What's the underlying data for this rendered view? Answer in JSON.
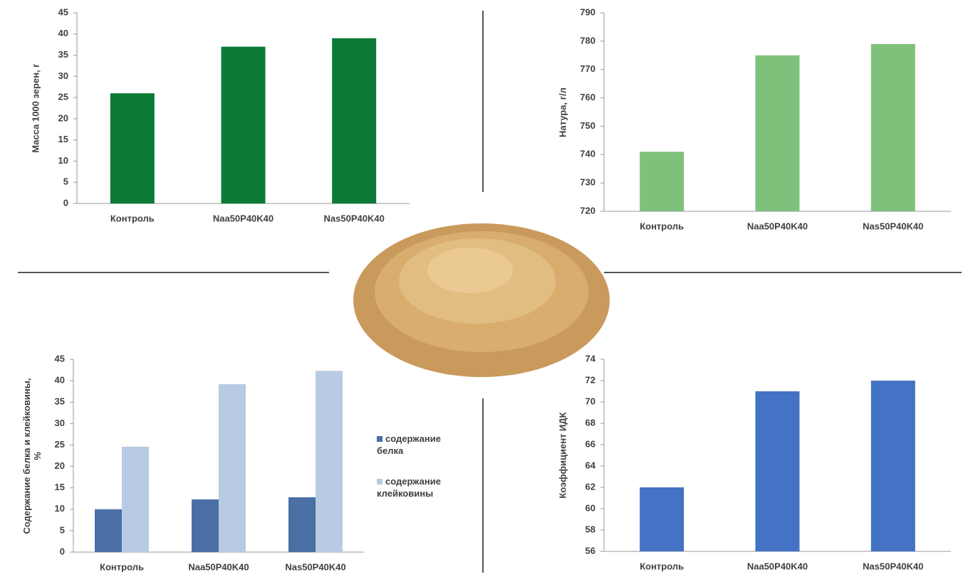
{
  "chart_data": [
    {
      "type": "bar",
      "y_label": "Масса 1000 зерен, г",
      "categories": [
        "Контроль",
        "Naa50P40K40",
        "Nas50P40K40"
      ],
      "values": [
        26,
        37,
        39
      ],
      "color": "#0b7a36",
      "ylim": [
        0,
        45
      ],
      "yticks": [
        0,
        5,
        10,
        15,
        20,
        25,
        30,
        35,
        40,
        45
      ]
    },
    {
      "type": "bar",
      "y_label": "Натура, г/л",
      "categories": [
        "Контроль",
        "Naa50P40K40",
        "Nas50P40K40"
      ],
      "values": [
        741,
        775,
        779
      ],
      "color": "#7fc17a",
      "ylim": [
        720,
        790
      ],
      "yticks": [
        720,
        730,
        740,
        750,
        760,
        770,
        780,
        790
      ]
    },
    {
      "type": "bar",
      "y_label": "Содержание белка и клейковины, %",
      "categories": [
        "Контроль",
        "Naa50P40K40",
        "Nas50P40K40"
      ],
      "series": [
        {
          "name": "содержание белка",
          "color": "#4a6fa5",
          "values": [
            10,
            12.3,
            12.8
          ]
        },
        {
          "name": "содержание клейковины",
          "color": "#b9cbe3",
          "values": [
            24.6,
            39.2,
            42.3
          ]
        }
      ],
      "legend": "right",
      "ylim": [
        0,
        45
      ],
      "yticks": [
        0,
        5,
        10,
        15,
        20,
        25,
        30,
        35,
        40,
        45
      ]
    },
    {
      "type": "bar",
      "y_label": "Коэффициент ИДК",
      "categories": [
        "Контроль",
        "Naa50P40K40",
        "Nas50P40K40"
      ],
      "values": [
        62,
        71,
        72
      ],
      "color": "#4472c4",
      "ylim": [
        56,
        74
      ],
      "yticks": [
        56,
        58,
        60,
        62,
        64,
        66,
        68,
        70,
        72,
        74
      ]
    }
  ]
}
